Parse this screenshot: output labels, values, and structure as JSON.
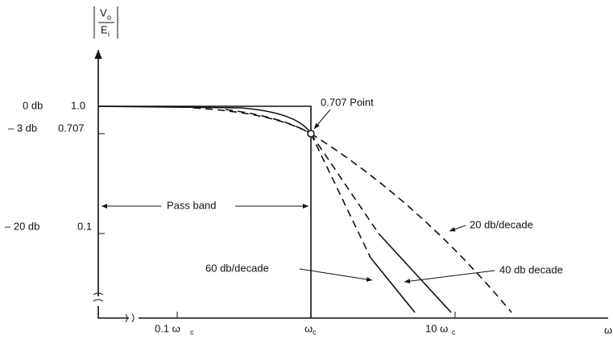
{
  "axis_label": {
    "numerator": "V",
    "numerator_sub": "o",
    "denominator": "E",
    "denominator_sub": "i"
  },
  "y_labels": [
    {
      "db": "0 db",
      "ratio": "1.0"
    },
    {
      "db": "– 3 db",
      "ratio": "0.707"
    },
    {
      "db": "– 20 db",
      "ratio": "0.1"
    }
  ],
  "x_labels": [
    {
      "text": "0.1 ω",
      "sub": "c"
    },
    {
      "text": "ω",
      "sub": "c"
    },
    {
      "text": "10 ω",
      "sub": "c"
    },
    {
      "text": "ω",
      "sub": ""
    }
  ],
  "annotations": {
    "point": "0.707 Point",
    "pass_band": "Pass band",
    "slope_20": "20 db/decade",
    "slope_40": "40 db decade",
    "slope_60": "60 db/decade"
  }
}
